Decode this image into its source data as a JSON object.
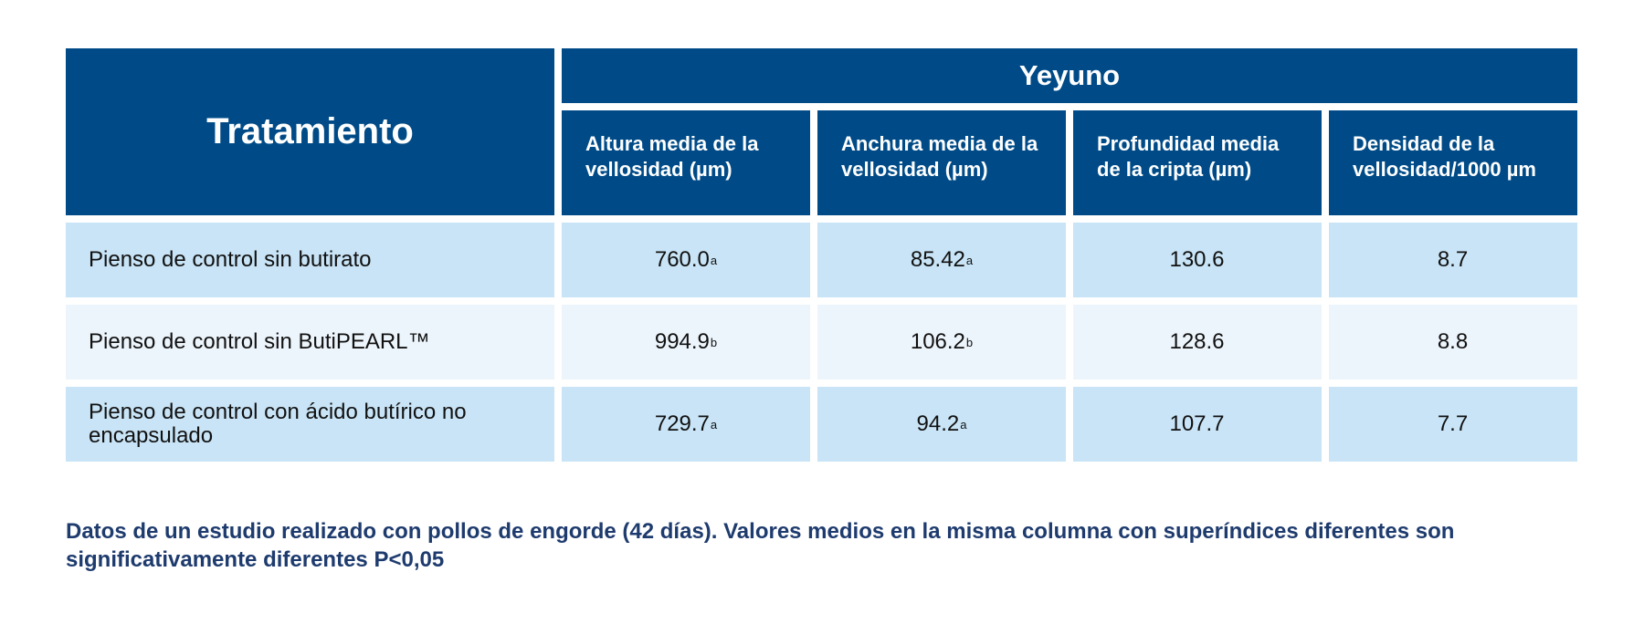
{
  "chart_data": {
    "type": "table",
    "title": "",
    "row_header": "Tratamiento",
    "group_header": "Yeyuno",
    "columns": [
      "Altura media de la vellosidad (µm)",
      "Anchura media de la vellosidad (µm)",
      "Profundidad media de la cripta (µm)",
      "Densidad de la vellosidad/1000 µm"
    ],
    "rows": [
      {
        "treatment": "Pienso de control sin butirato",
        "values": [
          "760.0",
          "85.42",
          "130.6",
          "8.7"
        ],
        "superscripts": [
          "a",
          "a",
          "",
          ""
        ]
      },
      {
        "treatment": "Pienso de control sin ButiPEARL™",
        "values": [
          "994.9",
          "106.2",
          "128.6",
          "8.8"
        ],
        "superscripts": [
          "b",
          "b",
          "",
          ""
        ]
      },
      {
        "treatment": "Pienso de control con ácido butírico no encapsulado",
        "values": [
          "729.7",
          "94.2",
          "107.7",
          "7.7"
        ],
        "superscripts": [
          "a",
          "a",
          "",
          ""
        ]
      }
    ],
    "footnote": "Datos de un estudio realizado con pollos de engorde (42 días). Valores medios en la misma columna con superíndices diferentes son significativamente diferentes P<0,05"
  },
  "colors": {
    "header_bg": "#004b87",
    "header_text": "#ffffff",
    "row_dark": "#c8e4f6",
    "row_light": "#edf5fc",
    "footnote_text": "#1e3b6e"
  }
}
